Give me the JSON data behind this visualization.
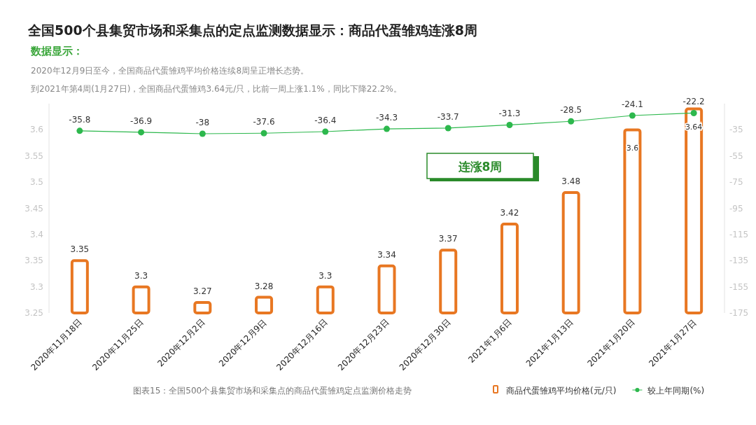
{
  "chart_data": {
    "type": "bar",
    "title": "全国500个县集贸市场和采集点的定点监测数据显示：商品代蛋雏鸡连涨8周",
    "subtitle": "数据显示：",
    "annotations": [
      "2020年12月9日至今，全国商品代蛋雏鸡平均价格连续8周呈正增长态势。",
      "到2021年第4周(1月27日)，全国商品代蛋雏鸡3.64元/只，比前一周上涨1.1%，同比下降22.2%。",
      "连涨8周",
      "图表15：全国500个县集贸市场和采集点的商品代蛋雏鸡定点监测价格走势"
    ],
    "categories": [
      "2020年11月18日",
      "2020年11月25日",
      "2020年12月2日",
      "2020年12月9日",
      "2020年12月16日",
      "2020年12月23日",
      "2020年12月30日",
      "2021年1月6日",
      "2021年1月13日",
      "2021年1月20日",
      "2021年1月27日"
    ],
    "series": [
      {
        "name": "商品代蛋雏鸡平均价格(元/只)",
        "color": "#e87722",
        "values": [
          3.35,
          3.3,
          3.27,
          3.28,
          3.3,
          3.34,
          3.37,
          3.42,
          3.48,
          3.6,
          3.64
        ]
      },
      {
        "name": "较上年同期(%)",
        "type": "line",
        "axis": "y2",
        "color": "#2db84d",
        "values": [
          -35.8,
          -36.9,
          -38,
          -37.6,
          -36.4,
          -34.3,
          -33.7,
          -31.3,
          -28.5,
          -24.1,
          -22.2
        ]
      }
    ],
    "ylim": [
      3.25,
      3.65
    ],
    "yticks": [
      3.25,
      3.3,
      3.35,
      3.4,
      3.45,
      3.5,
      3.55,
      3.6
    ],
    "y2lim": [
      -175,
      -15
    ],
    "y2ticks": [
      -175,
      -155,
      -135,
      -115,
      -95,
      -75,
      -55,
      -35
    ],
    "data_labels": true,
    "legend": "bottom right",
    "marker": "circle",
    "line_style": "solid"
  }
}
